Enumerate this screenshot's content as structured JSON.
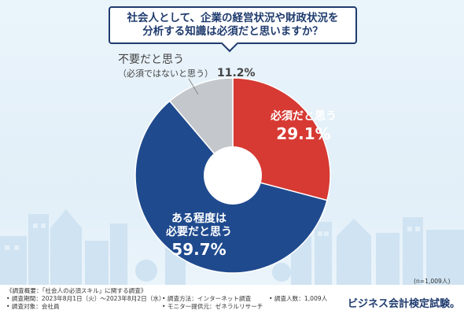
{
  "question": {
    "line1": "社会人として、企業の経営状況や財政状況を",
    "line2": "分析する知識は必須だと思いますか？"
  },
  "chart_data": {
    "type": "pie",
    "title": "社会人として、企業の経営状況や財政状況を分析する知識は必須だと思いますか？",
    "start_angle_deg": 0,
    "direction": "clockwise",
    "slices": [
      {
        "label_lines": [
          "必須だと思う"
        ],
        "value": 29.1,
        "value_label": "29.1%",
        "color": "#d63a33",
        "label_color": "#ffffff"
      },
      {
        "label_lines": [
          "ある程度は",
          "必要だと思う"
        ],
        "value": 59.7,
        "value_label": "59.7%",
        "color": "#1f4a8e",
        "label_color": "#ffffff"
      },
      {
        "label_lines": [
          "不要だと思う",
          "（必須ではないと思う）"
        ],
        "value": 11.2,
        "value_label": "11.2%",
        "color": "#c4c8cc",
        "label_color": "#444444"
      }
    ]
  },
  "sample_size": "(n=1,009人)",
  "survey": {
    "c1": [
      "《調査概要：「社会人の必須スキル」に関する調査》",
      "• 調査期間：2023年8月1日（火）〜2023年8月2日（水）",
      "• 調査対象：会社員"
    ],
    "c2": [
      "• 調査方法：インターネット調査",
      "• モニター提供元：ゼネラルリサーチ"
    ],
    "c3": [
      "• 調査人数：1,009人"
    ]
  },
  "brand": "ビジネス会計検定試験。",
  "colors": {
    "navy": "#1f3b6e",
    "red": "#d63a33",
    "blue": "#1f4a8e",
    "gray": "#c4c8cc"
  }
}
